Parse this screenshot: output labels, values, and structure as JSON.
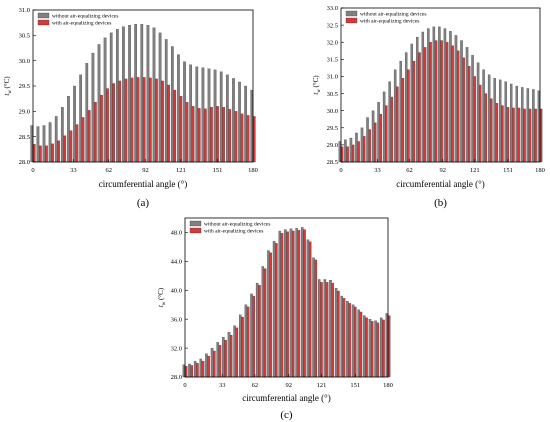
{
  "colors": {
    "gray": "#808080",
    "red": "#d53a3a",
    "axis": "#000000"
  },
  "chart_data": [
    {
      "type": "bar",
      "panel_label": "(a)",
      "xlabel": "circumferential angle (°)",
      "ylabel_main": "t",
      "ylabel_sub": "w",
      "ylabel_unit": "(°C)",
      "ylim": [
        28.0,
        31.0
      ],
      "yticks": [
        "28.0",
        "28.5",
        "29.0",
        "29.5",
        "30.0",
        "30.5",
        "31.0"
      ],
      "xticks": [
        "0",
        "33",
        "62",
        "92",
        "121",
        "151",
        "180"
      ],
      "legend_position": "top-left",
      "angles": [
        0,
        5,
        10,
        15,
        20,
        25,
        30,
        35,
        40,
        45,
        50,
        55,
        60,
        65,
        70,
        75,
        80,
        85,
        90,
        95,
        100,
        105,
        110,
        115,
        120,
        125,
        130,
        135,
        140,
        145,
        150,
        155,
        160,
        165,
        170,
        175,
        180
      ],
      "series": [
        {
          "name": "without air-equalizing devices",
          "color": "gray",
          "values": [
            28.72,
            28.7,
            28.72,
            28.78,
            28.9,
            29.08,
            29.3,
            29.5,
            29.72,
            29.95,
            30.15,
            30.32,
            30.45,
            30.55,
            30.62,
            30.67,
            30.7,
            30.72,
            30.72,
            30.7,
            30.65,
            30.55,
            30.42,
            30.28,
            30.12,
            29.98,
            29.92,
            29.88,
            29.86,
            29.84,
            29.82,
            29.78,
            29.72,
            29.65,
            29.58,
            29.5,
            29.42
          ]
        },
        {
          "name": "with air-equalizing devices",
          "color": "red",
          "values": [
            28.35,
            28.32,
            28.32,
            28.36,
            28.42,
            28.52,
            28.62,
            28.74,
            28.88,
            29.02,
            29.18,
            29.32,
            29.45,
            29.55,
            29.6,
            29.64,
            29.66,
            29.67,
            29.67,
            29.66,
            29.64,
            29.6,
            29.52,
            29.42,
            29.3,
            29.18,
            29.1,
            29.06,
            29.05,
            29.08,
            29.1,
            29.08,
            29.04,
            29.0,
            28.95,
            28.92,
            28.9
          ]
        }
      ]
    },
    {
      "type": "bar",
      "panel_label": "(b)",
      "xlabel": "circumferential angle (°)",
      "ylabel_main": "t",
      "ylabel_sub": "w",
      "ylabel_unit": "(°C)",
      "ylim": [
        28.5,
        33.0
      ],
      "yticks": [
        "28.5",
        "29.0",
        "29.5",
        "30.0",
        "30.5",
        "31.0",
        "31.5",
        "32.0",
        "32.5",
        "33.0"
      ],
      "xticks": [
        "0",
        "33",
        "62",
        "92",
        "121",
        "151",
        "180"
      ],
      "legend_position": "top-left",
      "angles": [
        0,
        5,
        10,
        15,
        20,
        25,
        30,
        35,
        40,
        45,
        50,
        55,
        60,
        65,
        70,
        75,
        80,
        85,
        90,
        95,
        100,
        105,
        110,
        115,
        120,
        125,
        130,
        135,
        140,
        145,
        150,
        155,
        160,
        165,
        170,
        175,
        180
      ],
      "series": [
        {
          "name": "without air-equalizing devices",
          "color": "gray",
          "values": [
            29.1,
            29.15,
            29.2,
            29.35,
            29.5,
            29.8,
            30.0,
            30.25,
            30.55,
            30.85,
            31.2,
            31.45,
            31.7,
            31.95,
            32.15,
            32.3,
            32.4,
            32.45,
            32.45,
            32.4,
            32.32,
            32.2,
            32.05,
            31.85,
            31.62,
            31.4,
            31.2,
            31.05,
            30.95,
            30.9,
            30.85,
            30.78,
            30.72,
            30.68,
            30.65,
            30.62,
            30.58
          ]
        },
        {
          "name": "with air-equalizing devices",
          "color": "red",
          "values": [
            28.95,
            28.95,
            29.0,
            29.1,
            29.25,
            29.45,
            29.65,
            29.9,
            30.15,
            30.4,
            30.7,
            30.95,
            31.2,
            31.45,
            31.7,
            31.85,
            32.0,
            32.05,
            32.05,
            32.0,
            31.9,
            31.75,
            31.55,
            31.3,
            31.0,
            30.75,
            30.5,
            30.35,
            30.22,
            30.15,
            30.1,
            30.08,
            30.08,
            30.05,
            30.05,
            30.05,
            30.05
          ]
        }
      ]
    },
    {
      "type": "bar",
      "panel_label": "(c)",
      "xlabel": "circumferential angle (°)",
      "ylabel_main": "t",
      "ylabel_sub": "w",
      "ylabel_unit": "(°C)",
      "ylim": [
        28.0,
        50.0
      ],
      "yticks": [
        "28.0",
        "32.0",
        "36.0",
        "40.0",
        "44.0",
        "48.0"
      ],
      "xticks": [
        "0",
        "33",
        "62",
        "92",
        "121",
        "151",
        "180"
      ],
      "legend_position": "top-left",
      "angles": [
        0,
        5,
        10,
        15,
        20,
        25,
        30,
        35,
        40,
        45,
        50,
        55,
        60,
        65,
        70,
        75,
        80,
        85,
        90,
        95,
        100,
        105,
        110,
        115,
        120,
        125,
        130,
        135,
        140,
        145,
        150,
        155,
        160,
        165,
        170,
        175,
        180
      ],
      "series": [
        {
          "name": "without air-equalizing devices",
          "color": "gray",
          "values": [
            29.7,
            29.8,
            30.2,
            30.5,
            31.2,
            32.0,
            32.8,
            33.5,
            34.2,
            35.1,
            36.6,
            38.0,
            39.5,
            41.0,
            43.3,
            45.5,
            46.8,
            48.2,
            48.4,
            48.5,
            48.6,
            48.7,
            47.0,
            44.5,
            41.5,
            41.5,
            41.4,
            40.3,
            39.2,
            38.5,
            38.0,
            37.3,
            36.5,
            36.0,
            35.8,
            36.2,
            36.8
          ]
        },
        {
          "name": "with air-equalizing devices",
          "color": "red",
          "values": [
            29.5,
            29.6,
            29.9,
            30.2,
            30.9,
            31.6,
            32.4,
            33.1,
            33.8,
            34.8,
            36.3,
            37.7,
            39.2,
            40.7,
            43.0,
            45.2,
            46.5,
            47.9,
            48.1,
            48.2,
            48.3,
            48.4,
            46.7,
            44.2,
            41.1,
            41.1,
            41.0,
            39.9,
            38.9,
            38.2,
            37.7,
            37.0,
            36.2,
            35.7,
            35.5,
            35.9,
            36.5
          ]
        }
      ]
    }
  ]
}
